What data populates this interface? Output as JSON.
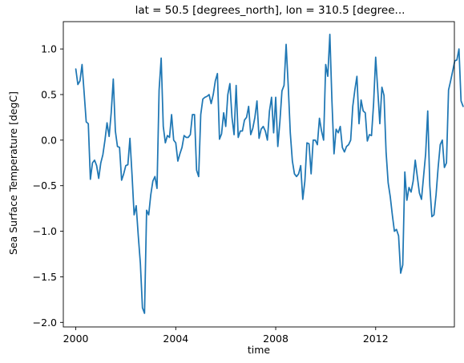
{
  "chart_data": {
    "type": "line",
    "title": "lat = 50.5 [degrees_north], lon = 310.5 [degree...",
    "xlabel": "time",
    "ylabel": "Sea Surface Temperature [degC]",
    "xlim": [
      1999.5,
      2015.15
    ],
    "ylim": [
      -2.05,
      1.3
    ],
    "x_ticks": [
      2000,
      2004,
      2008,
      2012
    ],
    "x_tick_labels": [
      "2000",
      "2004",
      "2008",
      "2012"
    ],
    "y_ticks": [
      -2.0,
      -1.5,
      -1.0,
      -0.5,
      0.0,
      0.5,
      1.0
    ],
    "y_tick_labels": [
      "−2.0",
      "−1.5",
      "−1.0",
      "−0.5",
      "0.0",
      "0.5",
      "1.0"
    ],
    "grid": false,
    "line_color": "#1f77b4",
    "series": [
      {
        "x_start": "2000-01",
        "x_step_months": 1,
        "values": [
          0.78,
          0.61,
          0.65,
          0.83,
          0.52,
          0.2,
          0.18,
          -0.43,
          -0.25,
          -0.22,
          -0.28,
          -0.42,
          -0.25,
          -0.16,
          0.0,
          0.19,
          0.04,
          0.3,
          0.67,
          0.1,
          -0.07,
          -0.08,
          -0.44,
          -0.37,
          -0.28,
          -0.27,
          0.02,
          -0.38,
          -0.82,
          -0.72,
          -1.05,
          -1.35,
          -1.84,
          -1.9,
          -0.77,
          -0.82,
          -0.6,
          -0.45,
          -0.4,
          -0.53,
          0.55,
          0.9,
          0.15,
          -0.03,
          0.05,
          0.03,
          0.28,
          0.0,
          -0.03,
          -0.23,
          -0.15,
          -0.08,
          0.05,
          0.03,
          0.03,
          0.06,
          0.28,
          0.28,
          -0.33,
          -0.4,
          0.28,
          0.45,
          0.47,
          0.48,
          0.5,
          0.4,
          0.5,
          0.65,
          0.73,
          0.01,
          0.07,
          0.3,
          0.15,
          0.5,
          0.62,
          0.25,
          0.06,
          0.6,
          0.03,
          0.1,
          0.1,
          0.22,
          0.25,
          0.37,
          0.06,
          0.13,
          0.25,
          0.43,
          0.02,
          0.12,
          0.15,
          0.1,
          0.0,
          0.32,
          0.47,
          0.08,
          0.47,
          -0.07,
          0.2,
          0.54,
          0.6,
          1.05,
          0.6,
          0.08,
          -0.23,
          -0.37,
          -0.4,
          -0.37,
          -0.28,
          -0.65,
          -0.45,
          -0.03,
          -0.04,
          -0.37,
          0.0,
          0.0,
          -0.05,
          0.24,
          0.1,
          0.0,
          0.83,
          0.7,
          1.16,
          0.43,
          -0.15,
          0.12,
          0.08,
          0.15,
          -0.08,
          -0.13,
          -0.07,
          -0.05,
          0.0,
          0.37,
          0.55,
          0.7,
          0.18,
          0.44,
          0.32,
          0.3,
          -0.01,
          0.06,
          0.05,
          0.4,
          0.91,
          0.55,
          0.18,
          0.58,
          0.49,
          -0.13,
          -0.47,
          -0.62,
          -0.82,
          -1.0,
          -0.98,
          -1.05,
          -1.46,
          -1.37,
          -0.35,
          -0.66,
          -0.52,
          -0.57,
          -0.45,
          -0.22,
          -0.4,
          -0.58,
          -0.65,
          -0.4,
          -0.15,
          0.32,
          -0.5,
          -0.84,
          -0.82,
          -0.6,
          -0.3,
          -0.05,
          0.0,
          -0.3,
          -0.25,
          0.55,
          0.65,
          0.76,
          0.87,
          0.88,
          1.0,
          0.43,
          0.37
        ]
      }
    ]
  }
}
